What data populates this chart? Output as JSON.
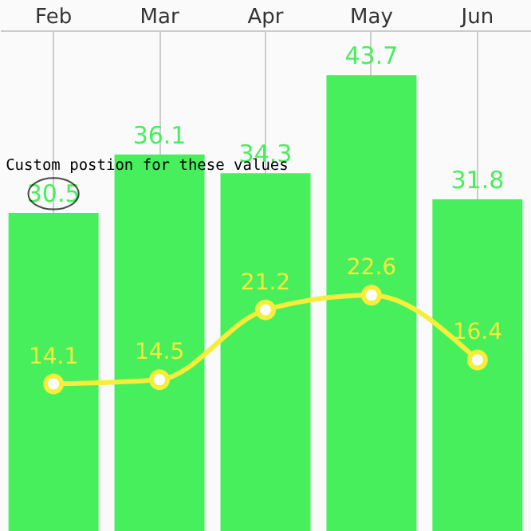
{
  "chart_data": {
    "type": "bar",
    "categories": [
      "Feb",
      "Mar",
      "Apr",
      "May",
      "Jun"
    ],
    "ylim": [
      0,
      48
    ],
    "grid": "x",
    "data_labels": true,
    "marker": "circle",
    "series": [
      {
        "color": "#47ef5c",
        "values": [
          30.5,
          36.1,
          34.3,
          43.7,
          31.8
        ]
      },
      {
        "type": "line",
        "color": "#f5ee3a",
        "values": [
          14.1,
          14.5,
          21.2,
          22.6,
          16.4
        ]
      }
    ],
    "annotations": [
      {
        "text": "Custom postion for these values",
        "x": "Feb",
        "y": 30.5
      }
    ]
  }
}
